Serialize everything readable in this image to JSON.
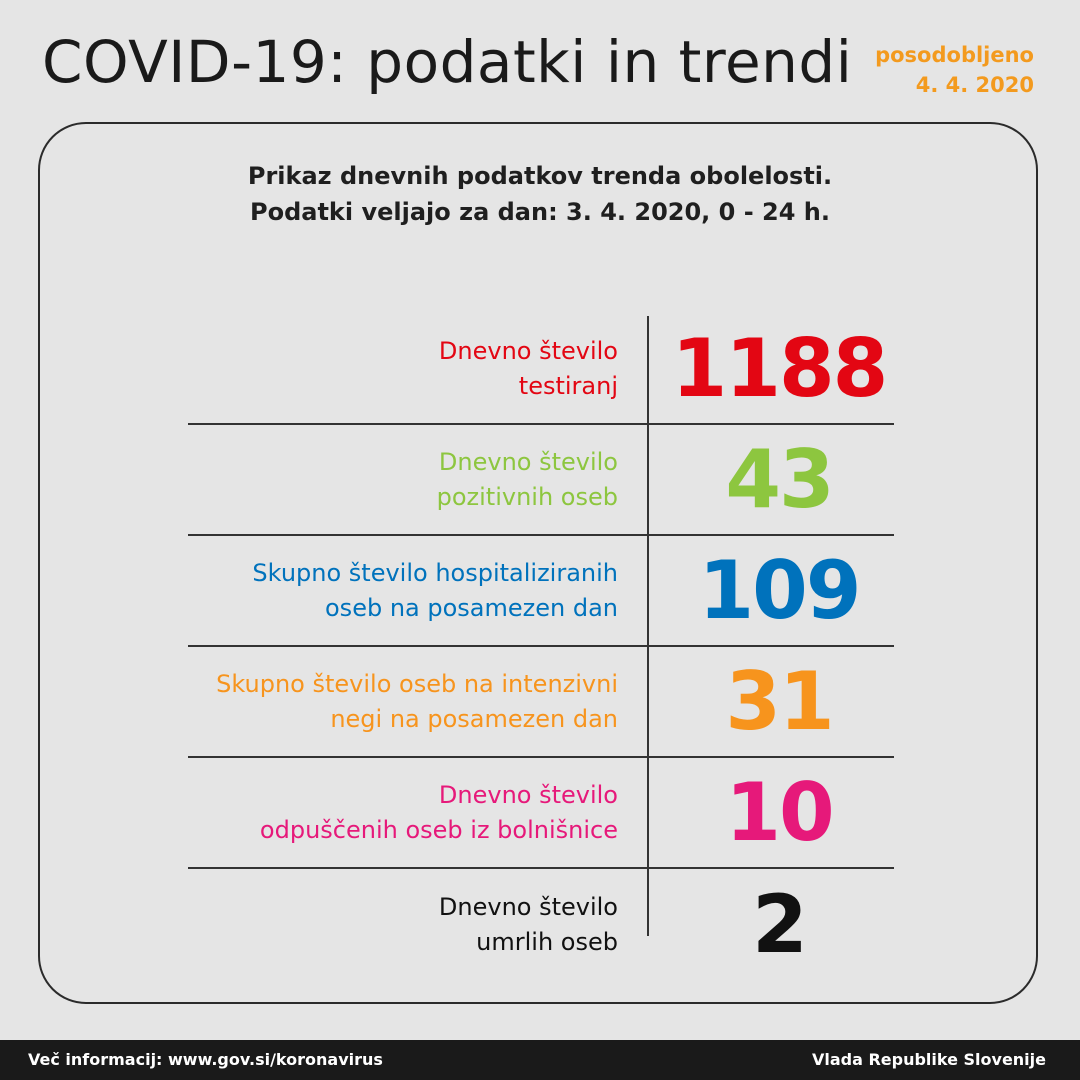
{
  "header": {
    "title": "COVID-19: podatki in trendi",
    "updated_label": "posodobljeno",
    "updated_date": "4. 4. 2020"
  },
  "card": {
    "subtitle_line1": "Prikaz dnevnih podatkov trenda obolelosti.",
    "subtitle_line2": "Podatki veljajo za dan: 3. 4. 2020, 0 - 24 h."
  },
  "stats": [
    {
      "label_line1": "Dnevno število",
      "label_line2": "testiranj",
      "value": "1188",
      "color": "#e30613"
    },
    {
      "label_line1": "Dnevno število",
      "label_line2": "pozitivnih oseb",
      "value": "43",
      "color": "#8dc63f"
    },
    {
      "label_line1": "Skupno število hospitaliziranih",
      "label_line2": "oseb na posamezen dan",
      "value": "109",
      "color": "#0072bc"
    },
    {
      "label_line1": "Skupno število oseb na intenzivni",
      "label_line2": "negi na posamezen dan",
      "value": "31",
      "color": "#f7941d"
    },
    {
      "label_line1": "Dnevno število",
      "label_line2": "odpuščenih oseb iz bolnišnice",
      "value": "10",
      "color": "#e6197a"
    },
    {
      "label_line1": "Dnevno število",
      "label_line2": "umrlih oseb",
      "value": "2",
      "color": "#111111"
    }
  ],
  "footer": {
    "info": "Več informacij: www.gov.si/koronavirus",
    "publisher": "Vlada Republike Slovenije"
  }
}
